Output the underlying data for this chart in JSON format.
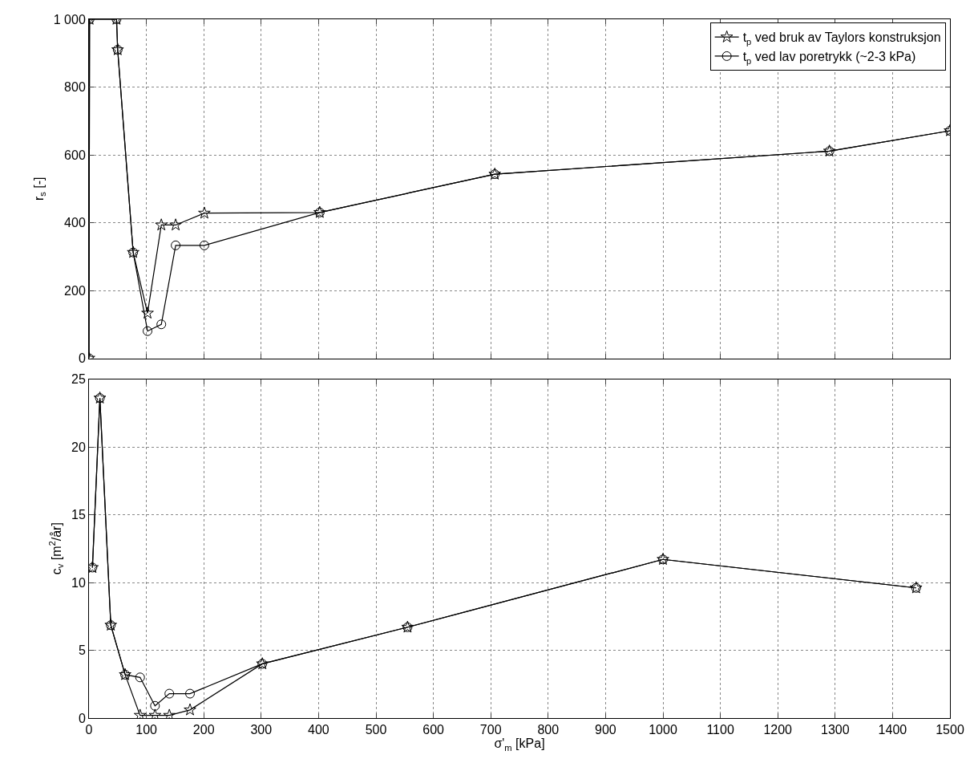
{
  "chart_data": [
    {
      "type": "line",
      "ylabel": "r$_{s}$ [-]",
      "xlim": [
        0,
        1500
      ],
      "ylim": [
        0,
        1000
      ],
      "xticks": [
        0,
        100,
        200,
        300,
        400,
        500,
        600,
        700,
        800,
        900,
        1000,
        1100,
        1200,
        1300,
        1400,
        1500
      ],
      "yticks": [
        0,
        200,
        400,
        600,
        800,
        {
          "value": 1000,
          "label": "1 000"
        }
      ],
      "tick_labels": "y",
      "grid": true,
      "legend": "top right",
      "series": [
        {
          "name": "t$_{p}$ ved bruk av Taylors konstruksjon",
          "color": "#000000",
          "marker": "star",
          "x": [
            0,
            1,
            48,
            50,
            77,
            102,
            126,
            151,
            201,
            402,
            707,
            1290,
            1500
          ],
          "values": [
            0,
            1000,
            1000,
            910,
            312,
            133,
            393,
            393,
            428,
            430,
            543,
            611,
            671
          ]
        },
        {
          "name": "t$_{p}$ ved lav poretrykk (~2-3 kPa)",
          "color": "#000000",
          "marker": "circle",
          "x": [
            0,
            1,
            48,
            50,
            77,
            102,
            126,
            151,
            201,
            402,
            707,
            1290,
            1500
          ],
          "values": [
            0,
            1000,
            1000,
            910,
            312,
            80,
            100,
            333,
            333,
            430,
            543,
            611,
            671
          ]
        }
      ]
    },
    {
      "type": "line",
      "xlabel": "σ'$_{m}$ [kPa]",
      "ylabel": "c$_{v}$ [m$^{2}$/år]",
      "xlim": [
        0,
        1500
      ],
      "ylim": [
        0,
        25
      ],
      "xticks": [
        0,
        100,
        200,
        300,
        400,
        500,
        600,
        700,
        800,
        900,
        1000,
        1100,
        1200,
        1300,
        1400,
        1500
      ],
      "yticks": [
        0,
        5,
        10,
        15,
        20,
        25
      ],
      "grid": true,
      "series": [
        {
          "color": "#000000",
          "marker": "star",
          "x": [
            6,
            19,
            38,
            63,
            89,
            115,
            140,
            176,
            302,
            555,
            1000,
            1441
          ],
          "values": [
            11.1,
            23.6,
            6.85,
            3.2,
            0.2,
            0.2,
            0.2,
            0.6,
            4.0,
            6.7,
            11.7,
            9.6
          ]
        },
        {
          "color": "#000000",
          "marker": "circle",
          "x": [
            6,
            19,
            38,
            63,
            89,
            115,
            140,
            176,
            302,
            555,
            1000,
            1441
          ],
          "values": [
            11.1,
            23.6,
            6.85,
            3.2,
            3.0,
            0.9,
            1.8,
            1.8,
            4.0,
            6.7,
            11.7,
            9.6
          ]
        }
      ]
    }
  ]
}
